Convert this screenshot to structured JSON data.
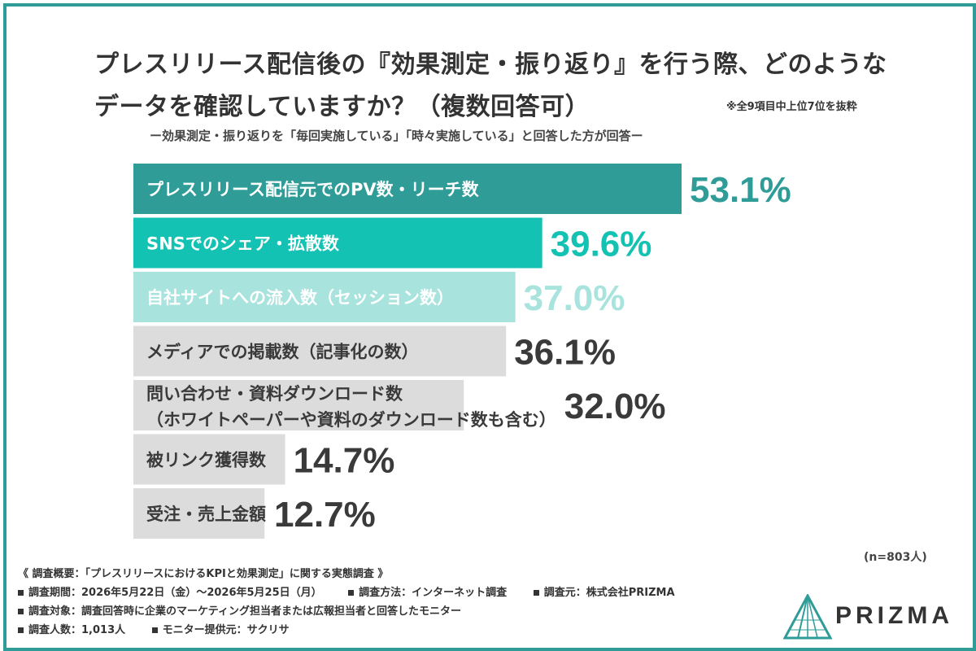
{
  "title_line1": "プレスリリース配信後の『効果測定・振り返り』を行う際、どのような",
  "title_line2": "データを確認していますか？（複数回答可）",
  "note": "※全9項目中上位7位を抜粋",
  "subtitle": "ー効果測定・振り返りを「毎回実施している」「時々実施している」と回答した方が回答ー",
  "chart_data": {
    "type": "bar",
    "orientation": "horizontal",
    "categories": [
      [
        "プレスリリース配信元でのPV数・リーチ数"
      ],
      [
        "SNSでのシェア・拡散数"
      ],
      [
        "自社サイトへの流入数（セッション数）"
      ],
      [
        "メディアでの掲載数（記事化の数）"
      ],
      [
        "問い合わせ・資料ダウンロード数",
        "（ホワイトペーパーや資料のダウンロード数も含む）"
      ],
      [
        "被リンク獲得数"
      ],
      [
        "受注・売上金額"
      ]
    ],
    "values": [
      53.1,
      39.6,
      37.0,
      36.1,
      32.0,
      14.7,
      12.7
    ],
    "value_labels": [
      "53.1%",
      "39.6%",
      "37.0%",
      "36.1%",
      "32.0%",
      "14.7%",
      "12.7%"
    ],
    "unit": "%",
    "bar_colors": [
      "#2f9c98",
      "#13c2b2",
      "#a8e3dd",
      "#dcdcdc",
      "#dcdcdc",
      "#dcdcdc",
      "#dcdcdc"
    ],
    "label_colors": [
      "#ffffff",
      "#ffffff",
      "#ffffff",
      "#3a3a3a",
      "#3a3a3a",
      "#3a3a3a",
      "#3a3a3a"
    ],
    "value_colors": [
      "#2f9c98",
      "#13c2b2",
      "#a8e3dd",
      "#3a3a3a",
      "#3a3a3a",
      "#3a3a3a",
      "#3a3a3a"
    ],
    "xlim": [
      0,
      53.1
    ],
    "grid": false,
    "legend": "none"
  },
  "n_label": "(n=803人)",
  "survey": {
    "heading": "《 調査概要：「プレスリリースにおけるKPIと効果測定」に関する実態調査 》",
    "rows": [
      [
        "調査期間：2026年5月22日（金）〜2026年5月25日（月）",
        "調査方法：インターネット調査",
        "調査元：株式会社PRIZMA"
      ],
      [
        "調査対象：調査回答時に企業のマーケティング担当者または広報担当者と回答したモニター"
      ],
      [
        "調査人数：1,013人",
        "モニター提供元：サクリサ"
      ]
    ]
  },
  "logo": {
    "text": "PRIZMA",
    "color": "#2f9c98"
  },
  "colors": {
    "frame": "#2f9c98",
    "accent": "#2f9c98"
  }
}
